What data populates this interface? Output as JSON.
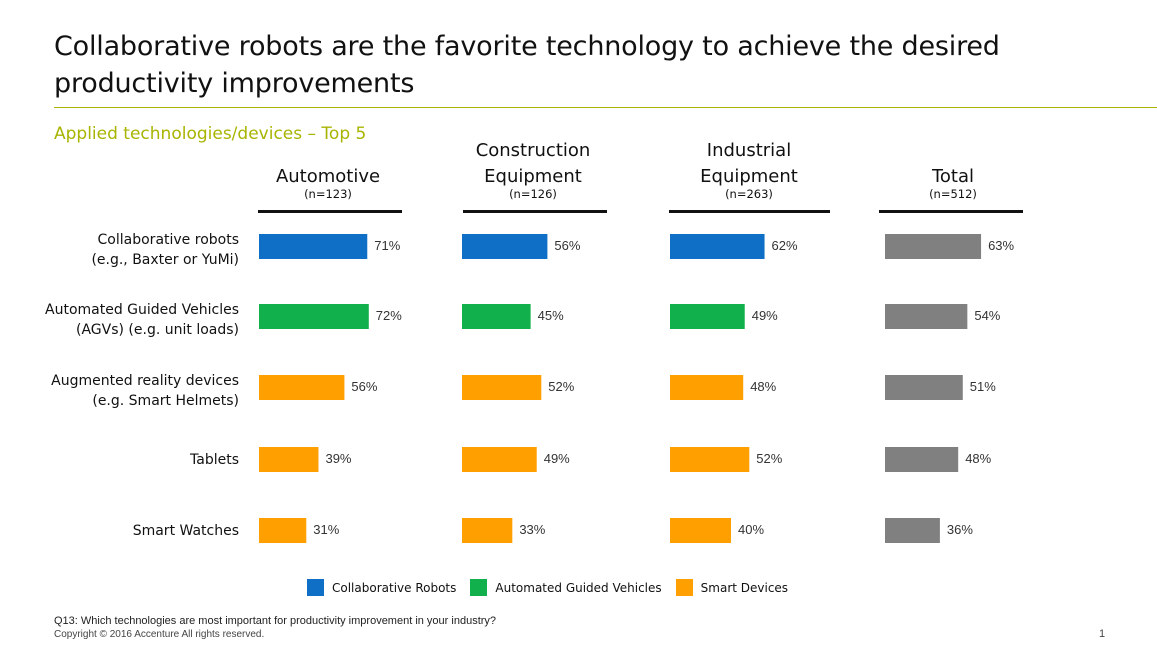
{
  "title": "Collaborative robots are the favorite technology to achieve the desired productivity improvements",
  "subtitle": "Applied technologies/devices – Top 5",
  "footnote": "Q13: Which technologies are most important for productivity improvement in your industry?",
  "copyright": "Copyright © 2016 Accenture  All rights reserved.",
  "page_number": "1",
  "colors": {
    "collaborative": "#0f6fc6",
    "agv": "#12b04c",
    "smart": "#ff9f00",
    "total": "#808080",
    "accent": "#a8b400"
  },
  "legend": [
    {
      "label": "Collaborative Robots",
      "color": "#0f6fc6"
    },
    {
      "label": "Automated Guided Vehicles",
      "color": "#12b04c"
    },
    {
      "label": "Smart Devices",
      "color": "#ff9f00"
    }
  ],
  "chart_data": {
    "type": "bar",
    "orientation": "horizontal",
    "title": "Applied technologies/devices – Top 5",
    "categories": [
      [
        "Collaborative robots",
        "(e.g., Baxter or YuMi)"
      ],
      [
        "Automated Guided Vehicles",
        "(AGVs) (e.g. unit loads)"
      ],
      [
        "Augmented reality devices",
        "(e.g. Smart Helmets)"
      ],
      [
        "Tablets"
      ],
      [
        "Smart Watches"
      ]
    ],
    "category_groups": [
      "collaborative",
      "agv",
      "smart",
      "smart",
      "smart"
    ],
    "value_format": "percent",
    "xlim": [
      0,
      100
    ],
    "grid": false,
    "legend_position": "bottom",
    "series": [
      {
        "name_lines": [
          "Automotive"
        ],
        "n": "(n=123)",
        "values": [
          71,
          72,
          56,
          39,
          31
        ]
      },
      {
        "name_lines": [
          "Construction",
          "Equipment"
        ],
        "n": "(n=126)",
        "values": [
          56,
          45,
          52,
          49,
          33
        ]
      },
      {
        "name_lines": [
          "Industrial",
          "Equipment"
        ],
        "n": "(n=263)",
        "values": [
          62,
          49,
          48,
          52,
          40
        ]
      },
      {
        "name_lines": [
          "Total"
        ],
        "n": "(n=512)",
        "values": [
          63,
          54,
          51,
          48,
          36
        ],
        "color": "total"
      }
    ]
  }
}
